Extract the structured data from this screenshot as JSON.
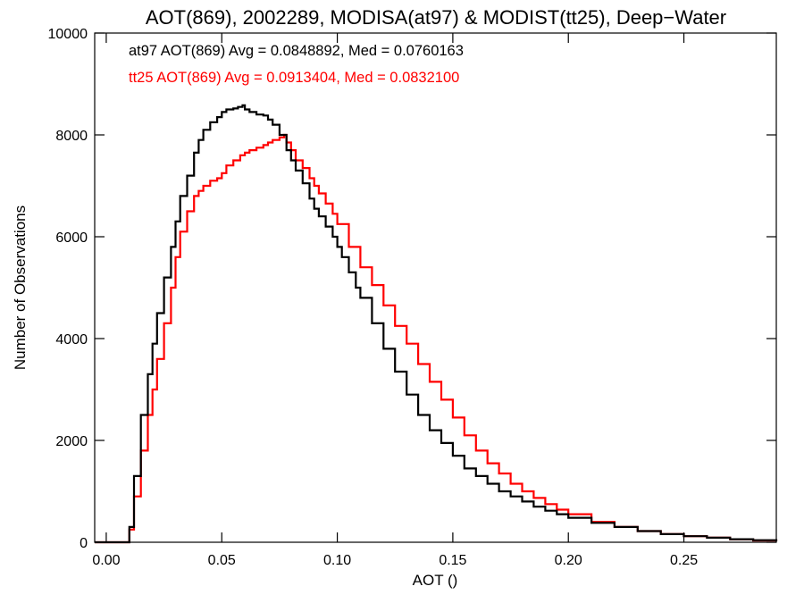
{
  "chart_data": {
    "type": "line",
    "title": "AOT(869), 2002289, MODISA(at97) & MODIST(tt25), Deep−Water",
    "xlabel": "AOT ()",
    "ylabel": "Number of Observations",
    "xlim": [
      -0.005,
      0.29
    ],
    "ylim": [
      0,
      10000
    ],
    "grid": false,
    "x_ticks": [
      0.0,
      0.05,
      0.1,
      0.15,
      0.2,
      0.25
    ],
    "x_tick_labels": [
      "0.00",
      "0.05",
      "0.10",
      "0.15",
      "0.20",
      "0.25"
    ],
    "y_ticks": [
      0,
      2000,
      4000,
      6000,
      8000,
      10000
    ],
    "y_tick_labels": [
      "0",
      "2000",
      "4000",
      "6000",
      "8000",
      "10000"
    ],
    "annotations": [
      {
        "text": "at97 AOT(869) Avg = 0.0848892, Med = 0.0760163",
        "color": "#000000"
      },
      {
        "text": "tt25 AOT(869) Avg = 0.0913404, Med = 0.0832100",
        "color": "#ff0000"
      }
    ],
    "series": [
      {
        "color": "#000000",
        "x": [
          -0.005,
          0.0,
          0.005,
          0.008,
          0.01,
          0.012,
          0.015,
          0.018,
          0.02,
          0.022,
          0.025,
          0.028,
          0.03,
          0.032,
          0.035,
          0.038,
          0.04,
          0.042,
          0.045,
          0.048,
          0.05,
          0.052,
          0.055,
          0.057,
          0.059,
          0.06,
          0.062,
          0.065,
          0.068,
          0.07,
          0.072,
          0.075,
          0.078,
          0.08,
          0.082,
          0.085,
          0.088,
          0.09,
          0.092,
          0.095,
          0.098,
          0.1,
          0.102,
          0.105,
          0.108,
          0.11,
          0.115,
          0.12,
          0.125,
          0.13,
          0.135,
          0.14,
          0.145,
          0.15,
          0.155,
          0.16,
          0.165,
          0.17,
          0.175,
          0.18,
          0.185,
          0.19,
          0.195,
          0.2,
          0.21,
          0.22,
          0.23,
          0.24,
          0.25,
          0.26,
          0.27,
          0.28,
          0.29
        ],
        "y": [
          0,
          0,
          0,
          0,
          300,
          1300,
          2500,
          3300,
          3900,
          4500,
          5200,
          5800,
          6300,
          6800,
          7200,
          7650,
          7900,
          8100,
          8250,
          8350,
          8450,
          8500,
          8520,
          8550,
          8580,
          8500,
          8450,
          8400,
          8380,
          8300,
          8200,
          8000,
          7700,
          7500,
          7300,
          7050,
          6750,
          6550,
          6400,
          6200,
          6000,
          5800,
          5600,
          5300,
          5000,
          4800,
          4300,
          3800,
          3350,
          2900,
          2500,
          2200,
          1950,
          1700,
          1450,
          1300,
          1150,
          1000,
          900,
          800,
          700,
          620,
          550,
          480,
          380,
          300,
          220,
          160,
          120,
          90,
          60,
          40,
          20
        ]
      },
      {
        "color": "#ff0000",
        "x": [
          -0.005,
          0.0,
          0.005,
          0.008,
          0.01,
          0.012,
          0.015,
          0.018,
          0.02,
          0.022,
          0.025,
          0.028,
          0.03,
          0.032,
          0.035,
          0.038,
          0.04,
          0.042,
          0.045,
          0.048,
          0.05,
          0.052,
          0.055,
          0.058,
          0.06,
          0.062,
          0.065,
          0.068,
          0.07,
          0.072,
          0.075,
          0.077,
          0.078,
          0.08,
          0.082,
          0.085,
          0.088,
          0.09,
          0.092,
          0.095,
          0.098,
          0.1,
          0.105,
          0.11,
          0.115,
          0.12,
          0.125,
          0.13,
          0.135,
          0.14,
          0.145,
          0.15,
          0.155,
          0.16,
          0.165,
          0.17,
          0.175,
          0.18,
          0.185,
          0.19,
          0.195,
          0.2,
          0.21,
          0.22,
          0.23,
          0.24,
          0.25,
          0.26,
          0.27,
          0.28,
          0.29
        ],
        "y": [
          0,
          0,
          0,
          0,
          250,
          900,
          1800,
          2500,
          3000,
          3600,
          4300,
          5000,
          5600,
          6100,
          6500,
          6800,
          6900,
          7000,
          7100,
          7150,
          7250,
          7400,
          7500,
          7600,
          7650,
          7700,
          7750,
          7800,
          7850,
          7900,
          7950,
          8000,
          7850,
          7700,
          7500,
          7350,
          7150,
          7000,
          6850,
          6650,
          6450,
          6250,
          5800,
          5400,
          5050,
          4650,
          4250,
          3900,
          3500,
          3150,
          2800,
          2450,
          2100,
          1800,
          1550,
          1350,
          1150,
          1000,
          870,
          750,
          640,
          550,
          400,
          300,
          220,
          160,
          120,
          90,
          60,
          35,
          20
        ]
      }
    ]
  }
}
